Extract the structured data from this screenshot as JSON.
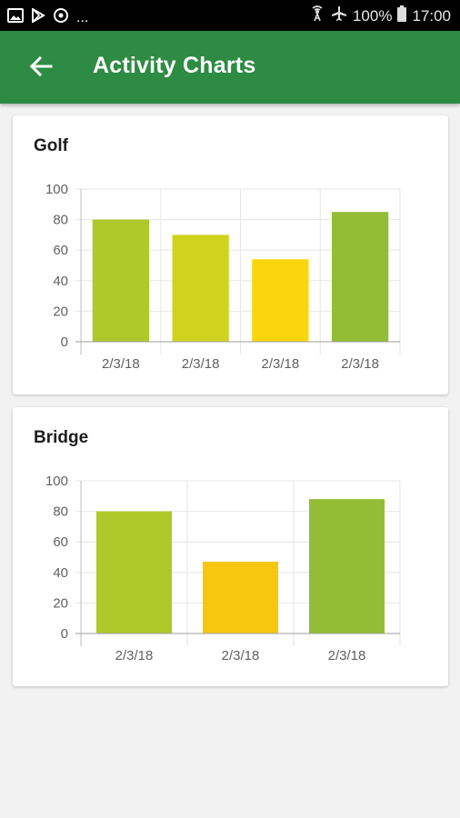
{
  "status_bar": {
    "icons_left": [
      "image-icon",
      "play-store-icon",
      "sync-icon"
    ],
    "overflow": "...",
    "icons_right": [
      "hotspot-icon",
      "airplane-icon"
    ],
    "battery": "100%",
    "time": "17:00"
  },
  "toolbar": {
    "back_icon": "arrow-back-icon",
    "title": "Activity Charts"
  },
  "colors": {
    "toolbar": "#2e8b43",
    "bar_greenyellow": "#afc82a",
    "bar_lime": "#cfd31e",
    "bar_yellow": "#fad60d",
    "bar_green": "#93bd35",
    "bar_amber": "#f7c60f"
  },
  "charts": [
    {
      "title": "Golf",
      "chart_data": {
        "type": "bar",
        "categories": [
          "2/3/18",
          "2/3/18",
          "2/3/18",
          "2/3/18"
        ],
        "values": [
          80,
          70,
          54,
          85
        ],
        "colors": [
          "#afc82a",
          "#cfd31e",
          "#fad60d",
          "#93bd35"
        ],
        "ylim": [
          0,
          100
        ],
        "yticks": [
          0,
          20,
          40,
          60,
          80,
          100
        ],
        "grid": true,
        "legend": "none"
      }
    },
    {
      "title": "Bridge",
      "chart_data": {
        "type": "bar",
        "categories": [
          "2/3/18",
          "2/3/18",
          "2/3/18"
        ],
        "values": [
          80,
          47,
          88
        ],
        "colors": [
          "#afc82a",
          "#f7c60f",
          "#93bd35"
        ],
        "ylim": [
          0,
          100
        ],
        "yticks": [
          0,
          20,
          40,
          60,
          80,
          100
        ],
        "grid": true,
        "legend": "none"
      }
    }
  ]
}
